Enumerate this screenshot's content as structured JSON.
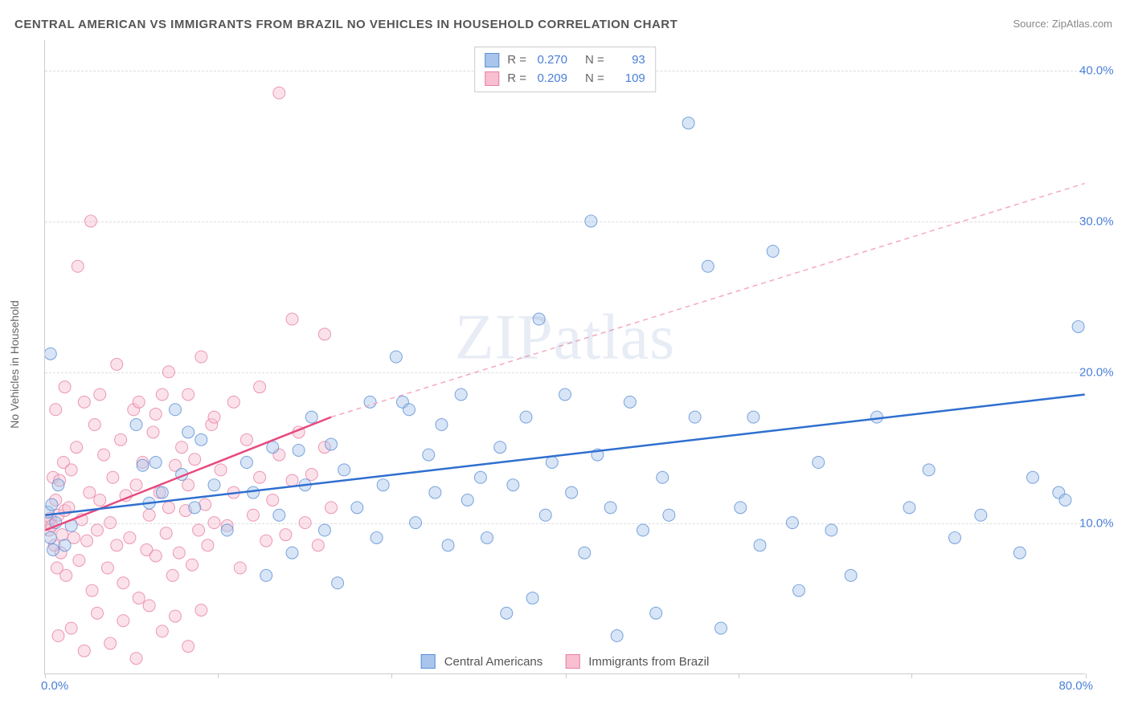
{
  "title": "CENTRAL AMERICAN VS IMMIGRANTS FROM BRAZIL NO VEHICLES IN HOUSEHOLD CORRELATION CHART",
  "source": "Source: ZipAtlas.com",
  "watermark": "ZIPatlas",
  "y_axis_label": "No Vehicles in Household",
  "chart": {
    "type": "scatter",
    "background_color": "#ffffff",
    "grid_color": "#dddddd",
    "axis_color": "#cccccc",
    "tick_label_color": "#4a7fd8",
    "xlim": [
      0,
      80
    ],
    "ylim": [
      0,
      42
    ],
    "x_ticks": [
      0,
      13.3,
      26.6,
      40,
      53.3,
      66.6,
      80
    ],
    "x_tick_labels": {
      "0": "0.0%",
      "80": "80.0%"
    },
    "y_ticks": [
      10,
      20,
      30,
      40
    ],
    "y_tick_labels": {
      "10": "10.0%",
      "20": "20.0%",
      "30": "30.0%",
      "40": "40.0%"
    },
    "marker_radius": 7.5,
    "marker_opacity": 0.45,
    "marker_stroke_opacity": 0.8,
    "series": [
      {
        "id": "central_americans",
        "label": "Central Americans",
        "color_fill": "#a9c5ec",
        "color_stroke": "#5a8fd6",
        "R": "0.270",
        "N": "93",
        "trend": {
          "x1": 0,
          "y1": 10.5,
          "x2": 80,
          "y2": 18.5,
          "style": "solid",
          "width": 2.5,
          "color": "#2f6fd0"
        },
        "points": [
          [
            0.4,
            21.2
          ],
          [
            0.4,
            9.0
          ],
          [
            0.2,
            10.7
          ],
          [
            0.8,
            10.0
          ],
          [
            0.6,
            8.2
          ],
          [
            0.5,
            11.2
          ],
          [
            1.5,
            8.5
          ],
          [
            1.0,
            12.5
          ],
          [
            2.0,
            9.8
          ],
          [
            7.0,
            16.5
          ],
          [
            7.5,
            13.8
          ],
          [
            8.0,
            11.3
          ],
          [
            8.5,
            14.0
          ],
          [
            9.0,
            12.0
          ],
          [
            10.0,
            17.5
          ],
          [
            10.5,
            13.2
          ],
          [
            11.0,
            16.0
          ],
          [
            11.5,
            11.0
          ],
          [
            12.0,
            15.5
          ],
          [
            13.0,
            12.5
          ],
          [
            14.0,
            9.5
          ],
          [
            15.5,
            14.0
          ],
          [
            16.0,
            12.0
          ],
          [
            17.0,
            6.5
          ],
          [
            17.5,
            15.0
          ],
          [
            18.0,
            10.5
          ],
          [
            19.0,
            8.0
          ],
          [
            19.5,
            14.8
          ],
          [
            20.0,
            12.5
          ],
          [
            20.5,
            17.0
          ],
          [
            21.5,
            9.5
          ],
          [
            22.0,
            15.2
          ],
          [
            22.5,
            6.0
          ],
          [
            23.0,
            13.5
          ],
          [
            24.0,
            11.0
          ],
          [
            25.0,
            18.0
          ],
          [
            25.5,
            9.0
          ],
          [
            26.0,
            12.5
          ],
          [
            27.0,
            21.0
          ],
          [
            27.5,
            18.0
          ],
          [
            28.0,
            17.5
          ],
          [
            28.5,
            10.0
          ],
          [
            29.5,
            14.5
          ],
          [
            30.0,
            12.0
          ],
          [
            30.5,
            16.5
          ],
          [
            31.0,
            8.5
          ],
          [
            32.0,
            18.5
          ],
          [
            32.5,
            11.5
          ],
          [
            33.5,
            13.0
          ],
          [
            34.0,
            9.0
          ],
          [
            35.0,
            15.0
          ],
          [
            35.5,
            4.0
          ],
          [
            36.0,
            12.5
          ],
          [
            37.0,
            17.0
          ],
          [
            37.5,
            5.0
          ],
          [
            38.0,
            23.5
          ],
          [
            38.5,
            10.5
          ],
          [
            39.0,
            14.0
          ],
          [
            40.0,
            18.5
          ],
          [
            40.5,
            12.0
          ],
          [
            41.5,
            8.0
          ],
          [
            42.0,
            30.0
          ],
          [
            42.5,
            14.5
          ],
          [
            43.5,
            11.0
          ],
          [
            44.0,
            2.5
          ],
          [
            45.0,
            18.0
          ],
          [
            46.0,
            9.5
          ],
          [
            47.0,
            4.0
          ],
          [
            47.5,
            13.0
          ],
          [
            48.0,
            10.5
          ],
          [
            49.5,
            36.5
          ],
          [
            50.0,
            17.0
          ],
          [
            51.0,
            27.0
          ],
          [
            52.0,
            3.0
          ],
          [
            53.5,
            11.0
          ],
          [
            54.5,
            17.0
          ],
          [
            55.0,
            8.5
          ],
          [
            56.0,
            28.0
          ],
          [
            57.5,
            10.0
          ],
          [
            58.0,
            5.5
          ],
          [
            59.5,
            14.0
          ],
          [
            60.5,
            9.5
          ],
          [
            62.0,
            6.5
          ],
          [
            64.0,
            17.0
          ],
          [
            66.5,
            11.0
          ],
          [
            68.0,
            13.5
          ],
          [
            70.0,
            9.0
          ],
          [
            72.0,
            10.5
          ],
          [
            75.0,
            8.0
          ],
          [
            78.0,
            12.0
          ],
          [
            79.5,
            23.0
          ],
          [
            78.5,
            11.5
          ],
          [
            76.0,
            13.0
          ]
        ]
      },
      {
        "id": "brazil",
        "label": "Immigrants from Brazil",
        "color_fill": "#f7bfd0",
        "color_stroke": "#e77fa3",
        "R": "0.209",
        "N": "109",
        "trend_solid": {
          "x1": 0,
          "y1": 9.5,
          "x2": 22,
          "y2": 17.0,
          "style": "solid",
          "width": 2.5,
          "color": "#e84a7e"
        },
        "trend_dashed": {
          "x1": 22,
          "y1": 17.0,
          "x2": 80,
          "y2": 32.5,
          "style": "dashed",
          "width": 1.5,
          "color": "#f5a8c0"
        },
        "points": [
          [
            0.2,
            10.0
          ],
          [
            0.3,
            9.5
          ],
          [
            0.4,
            10.3
          ],
          [
            0.5,
            9.8
          ],
          [
            0.6,
            13.0
          ],
          [
            0.7,
            8.5
          ],
          [
            0.8,
            11.5
          ],
          [
            0.9,
            7.0
          ],
          [
            1.0,
            10.5
          ],
          [
            1.1,
            12.8
          ],
          [
            1.2,
            8.0
          ],
          [
            1.3,
            9.2
          ],
          [
            1.4,
            14.0
          ],
          [
            1.5,
            10.8
          ],
          [
            1.6,
            6.5
          ],
          [
            1.8,
            11.0
          ],
          [
            2.0,
            13.5
          ],
          [
            2.2,
            9.0
          ],
          [
            2.4,
            15.0
          ],
          [
            2.6,
            7.5
          ],
          [
            2.8,
            10.2
          ],
          [
            3.0,
            18.0
          ],
          [
            3.2,
            8.8
          ],
          [
            3.4,
            12.0
          ],
          [
            3.6,
            5.5
          ],
          [
            3.8,
            16.5
          ],
          [
            4.0,
            9.5
          ],
          [
            4.2,
            11.5
          ],
          [
            4.5,
            14.5
          ],
          [
            4.8,
            7.0
          ],
          [
            5.0,
            10.0
          ],
          [
            5.2,
            13.0
          ],
          [
            5.5,
            8.5
          ],
          [
            5.8,
            15.5
          ],
          [
            6.0,
            6.0
          ],
          [
            6.2,
            11.8
          ],
          [
            6.5,
            9.0
          ],
          [
            6.8,
            17.5
          ],
          [
            7.0,
            12.5
          ],
          [
            7.2,
            5.0
          ],
          [
            7.5,
            14.0
          ],
          [
            7.8,
            8.2
          ],
          [
            8.0,
            10.5
          ],
          [
            8.3,
            16.0
          ],
          [
            8.5,
            7.8
          ],
          [
            8.8,
            12.0
          ],
          [
            9.0,
            18.5
          ],
          [
            9.3,
            9.3
          ],
          [
            9.5,
            11.0
          ],
          [
            9.8,
            6.5
          ],
          [
            10.0,
            13.8
          ],
          [
            10.3,
            8.0
          ],
          [
            10.5,
            15.0
          ],
          [
            10.8,
            10.8
          ],
          [
            11.0,
            12.5
          ],
          [
            11.3,
            7.2
          ],
          [
            11.5,
            14.2
          ],
          [
            11.8,
            9.5
          ],
          [
            12.0,
            21.0
          ],
          [
            12.3,
            11.2
          ],
          [
            12.5,
            8.5
          ],
          [
            12.8,
            16.5
          ],
          [
            13.0,
            10.0
          ],
          [
            13.5,
            13.5
          ],
          [
            14.0,
            9.8
          ],
          [
            14.5,
            12.0
          ],
          [
            15.0,
            7.0
          ],
          [
            15.5,
            15.5
          ],
          [
            16.0,
            10.5
          ],
          [
            16.5,
            13.0
          ],
          [
            17.0,
            8.8
          ],
          [
            17.5,
            11.5
          ],
          [
            18.0,
            14.5
          ],
          [
            18.5,
            9.2
          ],
          [
            19.0,
            12.8
          ],
          [
            19.5,
            16.0
          ],
          [
            20.0,
            10.0
          ],
          [
            20.5,
            13.2
          ],
          [
            21.0,
            8.5
          ],
          [
            21.5,
            15.0
          ],
          [
            22.0,
            11.0
          ],
          [
            1.0,
            2.5
          ],
          [
            2.0,
            3.0
          ],
          [
            3.0,
            1.5
          ],
          [
            4.0,
            4.0
          ],
          [
            5.0,
            2.0
          ],
          [
            6.0,
            3.5
          ],
          [
            7.0,
            1.0
          ],
          [
            8.0,
            4.5
          ],
          [
            9.0,
            2.8
          ],
          [
            10.0,
            3.8
          ],
          [
            11.0,
            1.8
          ],
          [
            12.0,
            4.2
          ],
          [
            2.5,
            27.0
          ],
          [
            3.5,
            30.0
          ],
          [
            0.8,
            17.5
          ],
          [
            1.5,
            19.0
          ],
          [
            4.2,
            18.5
          ],
          [
            5.5,
            20.5
          ],
          [
            18.0,
            38.5
          ],
          [
            9.5,
            20.0
          ],
          [
            11.0,
            18.5
          ],
          [
            13.0,
            17.0
          ],
          [
            16.5,
            19.0
          ],
          [
            19.0,
            23.5
          ],
          [
            21.5,
            22.5
          ],
          [
            7.2,
            18.0
          ],
          [
            8.5,
            17.2
          ],
          [
            14.5,
            18.0
          ]
        ]
      }
    ]
  },
  "legend": {
    "series1_label": "Central Americans",
    "series2_label": "Immigrants from Brazil"
  },
  "stats": {
    "r_label": "R =",
    "n_label": "N ="
  }
}
